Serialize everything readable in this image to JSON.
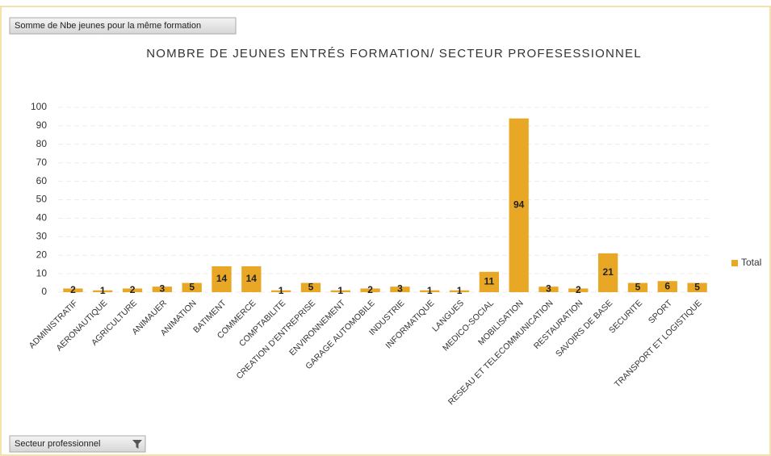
{
  "chart_data": {
    "type": "bar",
    "title": "NOMBRE DE JEUNES ENTRÉS FORMATION/ SECTEUR PROFESESSIONNEL",
    "value_field_button": "Somme de Nbe jeunes pour la même formation",
    "axis_field_button": "Secteur professionnel",
    "categories": [
      "ADMINISTRATIF",
      "AERONAUTIQUE",
      "AGRICULTURE",
      "ANIMAUER",
      "ANIMATION",
      "BATIMENT",
      "COMMERCE",
      "COMPTABILITE",
      "CREATION D'ENTREPRISE",
      "ENVIRONNEMENT",
      "GARAGE AUTOMOBILE",
      "INDUSTRIE",
      "INFORMATIQUE",
      "LANGUES",
      "MEDICO-SOCIAL",
      "MOBILISATION",
      "RESEAU ET TELECOMMUNICATION",
      "RESTAURATION",
      "SAVOIRS DE BASE",
      "SECURITE",
      "SPORT",
      "TRANSPORT ET LOGISTIQUE"
    ],
    "series": [
      {
        "name": "Total",
        "color": "#e8a825",
        "values": [
          2,
          1,
          2,
          3,
          5,
          14,
          14,
          1,
          5,
          1,
          2,
          3,
          1,
          1,
          11,
          94,
          3,
          2,
          21,
          5,
          6,
          5
        ]
      }
    ],
    "ylim": [
      0,
      100
    ],
    "yticks": [
      0,
      10,
      20,
      30,
      40,
      50,
      60,
      70,
      80,
      90,
      100
    ],
    "grid": true,
    "legend": "right",
    "data_labels": true
  }
}
